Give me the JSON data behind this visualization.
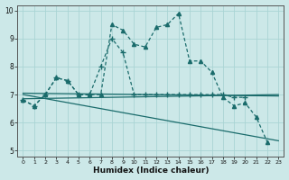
{
  "xlabel": "Humidex (Indice chaleur)",
  "background_color": "#cce8e8",
  "line_color": "#1a6b6b",
  "grid_color": "#aad4d4",
  "xlim": [
    -0.5,
    23.5
  ],
  "ylim": [
    4.8,
    10.2
  ],
  "yticks": [
    5,
    6,
    7,
    8,
    9,
    10
  ],
  "xticks": [
    0,
    1,
    2,
    3,
    4,
    5,
    6,
    7,
    8,
    9,
    10,
    11,
    12,
    13,
    14,
    15,
    16,
    17,
    18,
    19,
    20,
    21,
    22,
    23
  ],
  "curve1_x": [
    0,
    1,
    2,
    3,
    4,
    5,
    6,
    7,
    8,
    9,
    10,
    11,
    12,
    13,
    14,
    15,
    16,
    17,
    18,
    19,
    20,
    21,
    22
  ],
  "curve1_y": [
    6.8,
    6.6,
    7.0,
    7.6,
    7.5,
    7.0,
    7.0,
    7.0,
    9.5,
    9.3,
    8.8,
    8.7,
    9.4,
    9.5,
    9.9,
    8.2,
    8.2,
    7.8,
    6.9,
    6.6,
    6.7,
    6.2,
    5.3
  ],
  "curve2_x": [
    0,
    1,
    2,
    3,
    4,
    5,
    6,
    7,
    8,
    9,
    10,
    11,
    12,
    13,
    14,
    15,
    16,
    17,
    18,
    19,
    20
  ],
  "curve2_y": [
    6.8,
    6.6,
    7.0,
    7.6,
    7.5,
    7.0,
    7.0,
    8.0,
    9.0,
    8.5,
    7.0,
    7.0,
    7.0,
    7.0,
    7.0,
    7.0,
    7.0,
    7.0,
    7.0,
    6.9,
    6.9
  ],
  "trend1_x": [
    0,
    23
  ],
  "trend1_y": [
    6.85,
    7.0
  ],
  "trend2_x": [
    0,
    23
  ],
  "trend2_y": [
    7.05,
    6.95
  ],
  "trend3_x": [
    0,
    23
  ],
  "trend3_y": [
    7.0,
    5.35
  ]
}
